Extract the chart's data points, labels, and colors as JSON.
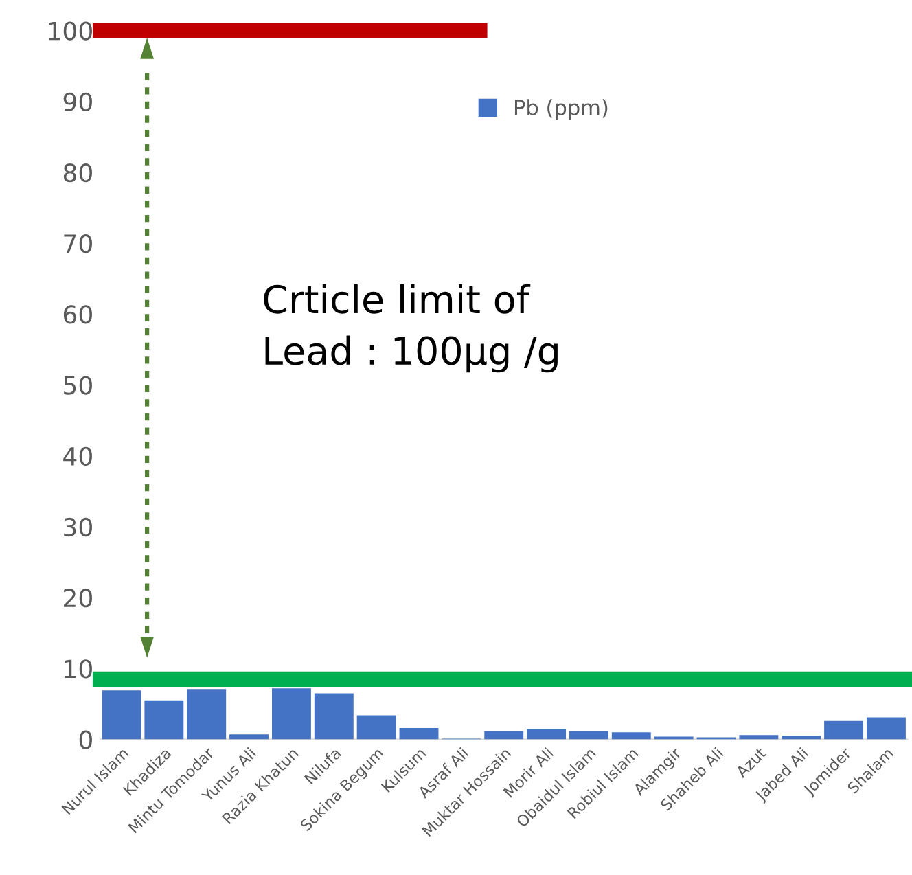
{
  "chart_data": {
    "type": "bar",
    "categories": [
      "Nurul Islam",
      "Khadiza",
      "Mintu Tomodar",
      "Yunus Ali",
      "Razia Khatun",
      "Nilufa",
      "Sokina Begum",
      "Kulsum",
      "Asraf Ali",
      "Muktar Hossain",
      "Morir Ali",
      "Obaidul Islam",
      "Robiul Islam",
      "Alamgir",
      "Shaheb Ali",
      "Azut",
      "Jabed Ali",
      "Jomider",
      "Shalam"
    ],
    "series": [
      {
        "name": "Pb (ppm)",
        "color": "#4472c4",
        "values": [
          6.9,
          5.5,
          7.1,
          0.7,
          7.2,
          6.5,
          3.4,
          1.6,
          0.1,
          1.2,
          1.5,
          1.2,
          1.0,
          0.4,
          0.3,
          0.6,
          0.5,
          2.6,
          3.1
        ]
      }
    ],
    "ylim": [
      0,
      100
    ],
    "yticks": [
      0,
      10,
      20,
      30,
      40,
      50,
      60,
      70,
      80,
      90,
      100
    ],
    "ref_lines": [
      {
        "axis": "y",
        "value": 100,
        "label": null,
        "color": "#c00000"
      },
      {
        "axis": "y",
        "value": 8.5,
        "label": null,
        "color": "#00b050"
      }
    ],
    "annotations": [
      "Crticle limit of\nLead : 100µg /g"
    ],
    "legend": "top",
    "grid": false
  }
}
